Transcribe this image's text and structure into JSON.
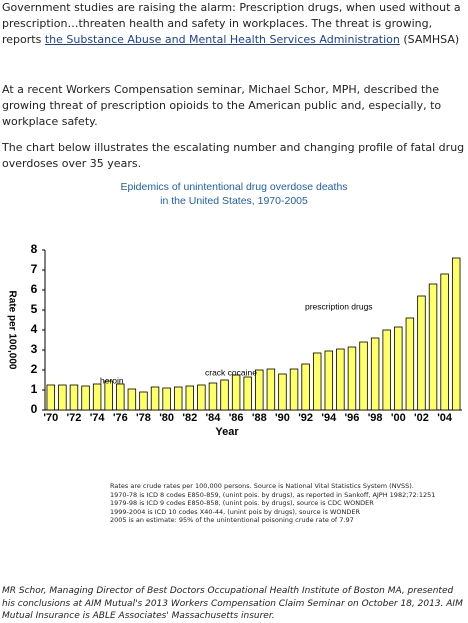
{
  "intro": {
    "before": "Government studies are raising the alarm:  Prescription drugs, when used without a prescription…threaten health and safety in workplaces. The threat is growing, reports ",
    "link": "the Substance Abuse and Mental Health Services Administration",
    "after": " (SAMHSA)"
  },
  "paragraphs": [
    "At a recent Workers Compensation seminar, Michael Schor, MPH, described the growing threat of prescription opioids to the American public and, especially, to workplace safety.",
    "The chart below illustrates the escalating number and changing profile of fatal drug overdoses over 35 years."
  ],
  "chart_data": {
    "type": "bar",
    "title": [
      "Epidemics of unintentional drug overdose deaths",
      "in the United States, 1970-2005"
    ],
    "ylabel": "Rate per 100,000",
    "xlabel": "Year",
    "annotations": [
      "heroin",
      "crack cocaine",
      "prescription drugs"
    ],
    "categories": [
      "'70",
      null,
      "'72",
      null,
      "'74",
      null,
      "'76",
      null,
      "'78",
      null,
      "'80",
      null,
      "'82",
      null,
      "'84",
      null,
      "'86",
      null,
      "'88",
      null,
      "'90",
      null,
      "'92",
      null,
      "'94",
      null,
      "'96",
      null,
      "'98",
      null,
      "'00",
      null,
      "'02",
      null,
      "'04",
      null
    ],
    "values": [
      1.25,
      1.25,
      1.25,
      1.2,
      1.3,
      1.45,
      1.3,
      1.05,
      0.9,
      1.15,
      1.1,
      1.15,
      1.2,
      1.25,
      1.35,
      1.5,
      1.75,
      1.65,
      2.0,
      2.05,
      1.8,
      2.05,
      2.3,
      2.85,
      2.95,
      3.05,
      3.15,
      3.4,
      3.6,
      4.0,
      4.15,
      4.6,
      5.7,
      6.3,
      6.8,
      7.6
    ],
    "color": "#ffff66",
    "ylim": [
      0,
      8
    ],
    "yticks": [
      0,
      1,
      2,
      3,
      4,
      5,
      6,
      7,
      8
    ]
  },
  "footnotes": [
    "Rates are crude rates per 100,000 persons. Source is National Vital Statistics System (NVSS).",
    "1970-78 is ICD 8 codes E850-859, (unint pois. by drugs), as reported in Sankoff, AJPH 1982;72:1251",
    "1979-98 is ICD 9 codes E850-858, (unint pois. by drugs), source is CDC WONDER",
    "1999-2004 is ICD 10 codes X40-44, (unint pois by drugs), source is WONDER",
    "2005 is an estimate: 95% of the unintentional poisoning crude rate of 7.97"
  ],
  "closing": "MR Schor, Managing Director of Best Doctors Occupational Health Institute of Boston MA, presented his conclusions at AIM Mutual's 2013 Workers Compensation Claim Seminar on October 18, 2013.  AIM Mutual Insurance is ABLE Associates' Massachusetts insurer."
}
